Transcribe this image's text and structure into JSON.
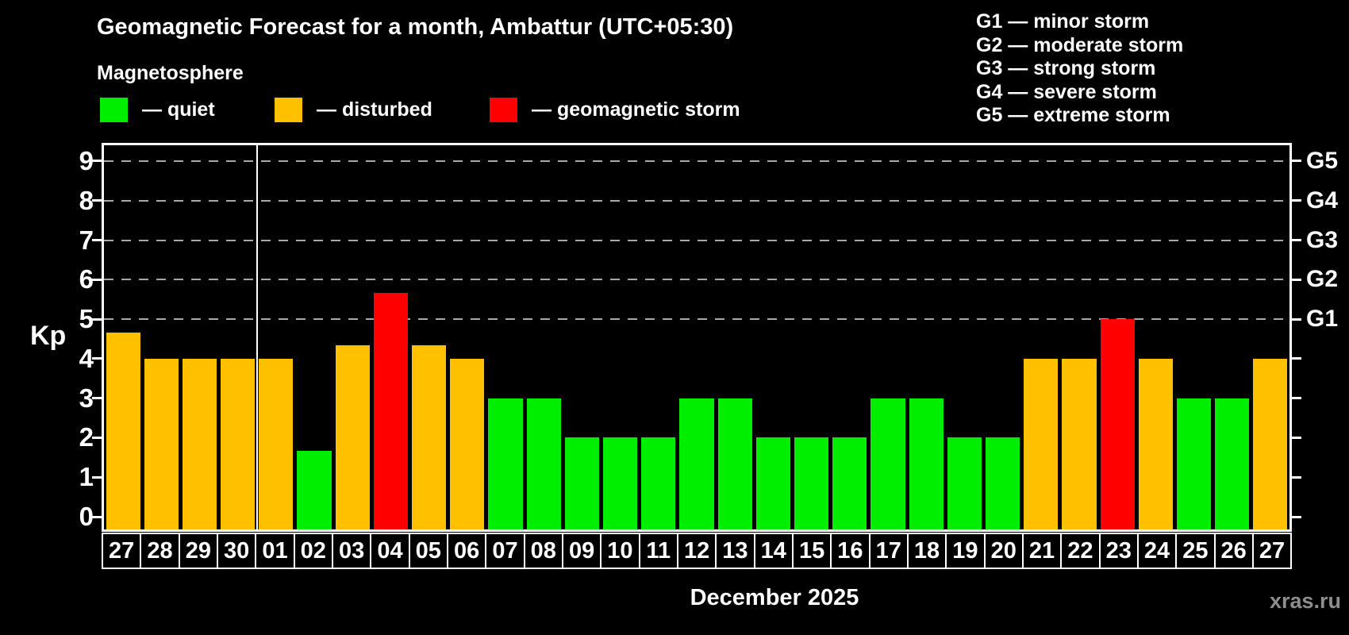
{
  "header": {
    "title": "Geomagnetic Forecast for a month, Ambattur (UTC+05:30)",
    "subtitle": "Magnetosphere"
  },
  "legend": [
    {
      "key": "quiet",
      "label": "— quiet",
      "color": "#00ee00"
    },
    {
      "key": "disturbed",
      "label": "— disturbed",
      "color": "#ffc000"
    },
    {
      "key": "storm",
      "label": "— geomagnetic storm",
      "color": "#ff0000"
    }
  ],
  "g_legend": [
    "G1 — minor storm",
    "G2 — moderate storm",
    "G3 — strong storm",
    "G4 — severe storm",
    "G5 — extreme storm"
  ],
  "chart_data": {
    "type": "bar",
    "title": "Geomagnetic Forecast for a month, Ambattur (UTC+05:30)",
    "ylabel": "Kp",
    "xlabel": "December 2025",
    "ylim": [
      0,
      9.4
    ],
    "yticks": [
      0,
      1,
      2,
      3,
      4,
      5,
      6,
      7,
      8,
      9
    ],
    "grid_levels": [
      5,
      6,
      7,
      8,
      9
    ],
    "right_scale": [
      {
        "kp": 5,
        "label": "G1"
      },
      {
        "kp": 6,
        "label": "G2"
      },
      {
        "kp": 7,
        "label": "G3"
      },
      {
        "kp": 8,
        "label": "G4"
      },
      {
        "kp": 9,
        "label": "G5"
      }
    ],
    "month_separator_after_index": 3,
    "bars": [
      {
        "day": "27",
        "kp": 4.67,
        "status": "disturbed"
      },
      {
        "day": "28",
        "kp": 4.0,
        "status": "disturbed"
      },
      {
        "day": "29",
        "kp": 4.0,
        "status": "disturbed"
      },
      {
        "day": "30",
        "kp": 4.0,
        "status": "disturbed"
      },
      {
        "day": "01",
        "kp": 4.0,
        "status": "disturbed"
      },
      {
        "day": "02",
        "kp": 1.67,
        "status": "quiet"
      },
      {
        "day": "03",
        "kp": 4.33,
        "status": "disturbed"
      },
      {
        "day": "04",
        "kp": 5.67,
        "status": "storm"
      },
      {
        "day": "05",
        "kp": 4.33,
        "status": "disturbed"
      },
      {
        "day": "06",
        "kp": 4.0,
        "status": "disturbed"
      },
      {
        "day": "07",
        "kp": 3.0,
        "status": "quiet"
      },
      {
        "day": "08",
        "kp": 3.0,
        "status": "quiet"
      },
      {
        "day": "09",
        "kp": 2.0,
        "status": "quiet"
      },
      {
        "day": "10",
        "kp": 2.0,
        "status": "quiet"
      },
      {
        "day": "11",
        "kp": 2.0,
        "status": "quiet"
      },
      {
        "day": "12",
        "kp": 3.0,
        "status": "quiet"
      },
      {
        "day": "13",
        "kp": 3.0,
        "status": "quiet"
      },
      {
        "day": "14",
        "kp": 2.0,
        "status": "quiet"
      },
      {
        "day": "15",
        "kp": 2.0,
        "status": "quiet"
      },
      {
        "day": "16",
        "kp": 2.0,
        "status": "quiet"
      },
      {
        "day": "17",
        "kp": 3.0,
        "status": "quiet"
      },
      {
        "day": "18",
        "kp": 3.0,
        "status": "quiet"
      },
      {
        "day": "19",
        "kp": 2.0,
        "status": "quiet"
      },
      {
        "day": "20",
        "kp": 2.0,
        "status": "quiet"
      },
      {
        "day": "21",
        "kp": 4.0,
        "status": "disturbed"
      },
      {
        "day": "22",
        "kp": 4.0,
        "status": "disturbed"
      },
      {
        "day": "23",
        "kp": 5.0,
        "status": "storm"
      },
      {
        "day": "24",
        "kp": 4.0,
        "status": "disturbed"
      },
      {
        "day": "25",
        "kp": 3.0,
        "status": "quiet"
      },
      {
        "day": "26",
        "kp": 3.0,
        "status": "quiet"
      },
      {
        "day": "27",
        "kp": 4.0,
        "status": "disturbed"
      }
    ]
  },
  "footer": {
    "xlabel": "December 2025",
    "watermark": "xras.ru"
  }
}
